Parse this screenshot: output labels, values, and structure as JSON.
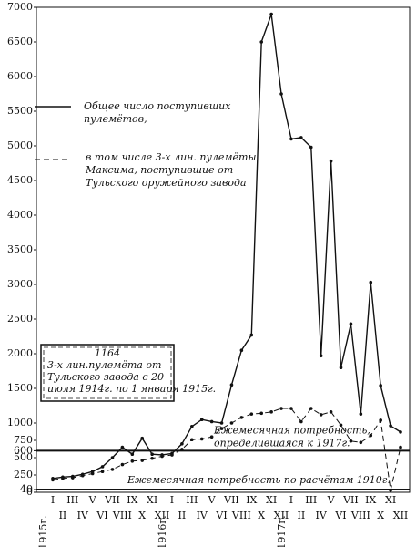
{
  "chart_data": {
    "type": "line",
    "categories": [
      "I",
      "II",
      "III",
      "IV",
      "V",
      "VI",
      "VII",
      "VIII",
      "IX",
      "X",
      "XI",
      "XII",
      "I",
      "II",
      "III",
      "IV",
      "V",
      "VI",
      "VII",
      "VIII",
      "IX",
      "X",
      "XI",
      "XII",
      "I",
      "II",
      "III",
      "IV",
      "V",
      "VI",
      "VII",
      "VIII",
      "IX",
      "X",
      "XI",
      "XII"
    ],
    "years": [
      {
        "index": 0,
        "label": "1915г."
      },
      {
        "index": 12,
        "label": "1916г."
      },
      {
        "index": 24,
        "label": "1917г."
      }
    ],
    "series": [
      {
        "name": [
          "Общее число поступивших",
          "пулемётов,"
        ],
        "style": "solid",
        "color": "#111111",
        "values": [
          200,
          220,
          230,
          260,
          300,
          370,
          500,
          650,
          550,
          780,
          550,
          540,
          560,
          700,
          950,
          1050,
          1020,
          1000,
          1550,
          2050,
          2270,
          6500,
          6900,
          5750,
          5100,
          5120,
          4980,
          1970,
          4780,
          1800,
          2430,
          1130,
          3030,
          1540,
          960,
          870
        ]
      },
      {
        "name": [
          "в том числе 3-х лин. пулемёты",
          "Максима, поступившие от",
          "Тульского оружейного завода"
        ],
        "style": "dashed",
        "color": "#111111",
        "values": [
          180,
          200,
          210,
          240,
          270,
          300,
          330,
          400,
          450,
          460,
          490,
          520,
          540,
          620,
          760,
          770,
          800,
          920,
          1000,
          1080,
          1130,
          1140,
          1160,
          1210,
          1210,
          1020,
          1210,
          1120,
          1160,
          970,
          740,
          720,
          820,
          1040,
          30,
          650
        ]
      }
    ],
    "ylim": [
      0,
      7000
    ],
    "yticks": [
      0,
      40,
      250,
      500,
      600,
      750,
      1000,
      1500,
      2000,
      2500,
      3000,
      3500,
      4000,
      4500,
      5000,
      5500,
      6000,
      6500,
      7000
    ],
    "hlines": [
      {
        "value": 600,
        "label": [
          "Ежемесячная потребность,",
          "определившаяся к 1917г."
        ]
      },
      {
        "value": 40,
        "label": [
          "Ежемесячная потребность по расчётам 1910г."
        ]
      }
    ],
    "note": [
      "1164",
      "3-х лин.пулемёта от",
      "Тульского завода с 20",
      "июля 1914г. по 1 января 1915г."
    ]
  }
}
